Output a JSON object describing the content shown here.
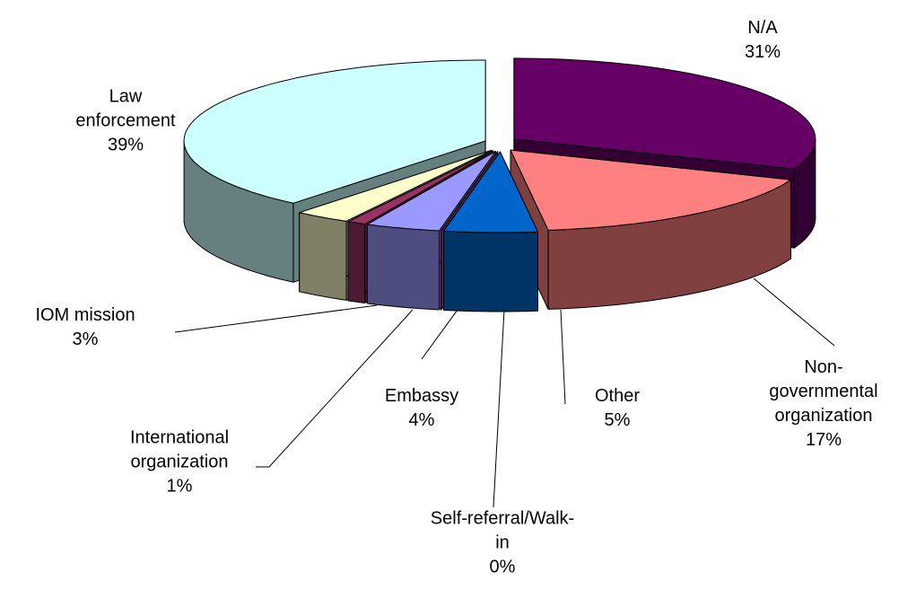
{
  "chart_data": {
    "type": "pie3d",
    "categories": [
      "N/A",
      "Non-governmental organization",
      "Other",
      "Self-referral/Walk-in",
      "Embassy",
      "International organization",
      "IOM mission",
      "Law enforcement"
    ],
    "values": [
      31,
      17,
      5,
      0,
      4,
      1,
      3,
      39
    ],
    "value_labels": [
      "31%",
      "17%",
      "5%",
      "0%",
      "4%",
      "1%",
      "3%",
      "39%"
    ],
    "colors": [
      "#660066",
      "#ff8080",
      "#0066cc",
      "#cc3399",
      "#9999ff",
      "#993366",
      "#ffffcc",
      "#ccffff"
    ]
  }
}
